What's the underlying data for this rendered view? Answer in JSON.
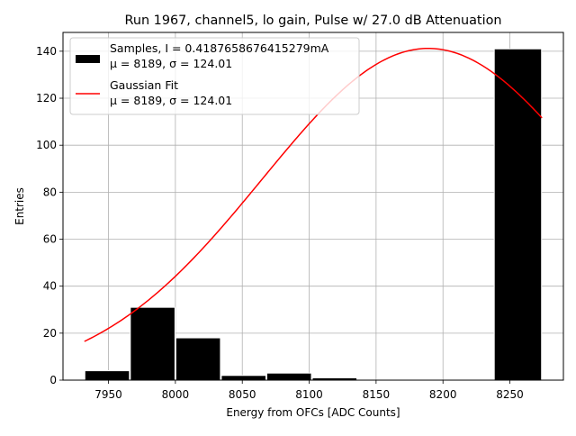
{
  "chart_data": {
    "type": "bar",
    "title": "Run 1967, channel5, lo gain, Pulse w/ 27.0 dB Attenuation",
    "xlabel": "Energy from OFCs [ADC Counts]",
    "ylabel": "Entries",
    "xlim": [
      7916,
      8290
    ],
    "ylim": [
      0,
      148
    ],
    "grid": true,
    "xticks": [
      7950,
      8000,
      8050,
      8100,
      8150,
      8200,
      8250
    ],
    "yticks": [
      0,
      20,
      40,
      60,
      80,
      100,
      120,
      140
    ],
    "histogram": {
      "name": "Samples, I = 0.4187658676415279mA",
      "color": "#000000",
      "bins": [
        {
          "x0": 7932,
          "x1": 7966,
          "value": 4
        },
        {
          "x0": 7966,
          "x1": 8000,
          "value": 31
        },
        {
          "x0": 8000,
          "x1": 8034,
          "value": 18
        },
        {
          "x0": 8034,
          "x1": 8068,
          "value": 2
        },
        {
          "x0": 8068,
          "x1": 8102,
          "value": 3
        },
        {
          "x0": 8102,
          "x1": 8136,
          "value": 1
        },
        {
          "x0": 8136,
          "x1": 8170,
          "value": 0
        },
        {
          "x0": 8170,
          "x1": 8204,
          "value": 0
        },
        {
          "x0": 8204,
          "x1": 8238,
          "value": 0
        },
        {
          "x0": 8238,
          "x1": 8274,
          "value": 141
        }
      ]
    },
    "fit": {
      "name": "Gaussian Fit",
      "color": "#ff0000",
      "mu": 8189,
      "sigma": 124.01,
      "amplitude": 141.2,
      "x_range": [
        7932,
        8274
      ]
    },
    "legend": {
      "position": "upper-left",
      "entries": [
        {
          "label": "Samples, I = 0.4187658676415279mA",
          "sublabel": "μ = 8189, σ = 124.01"
        },
        {
          "label": "Gaussian Fit",
          "sublabel": "μ = 8189, σ = 124.01"
        }
      ]
    }
  }
}
